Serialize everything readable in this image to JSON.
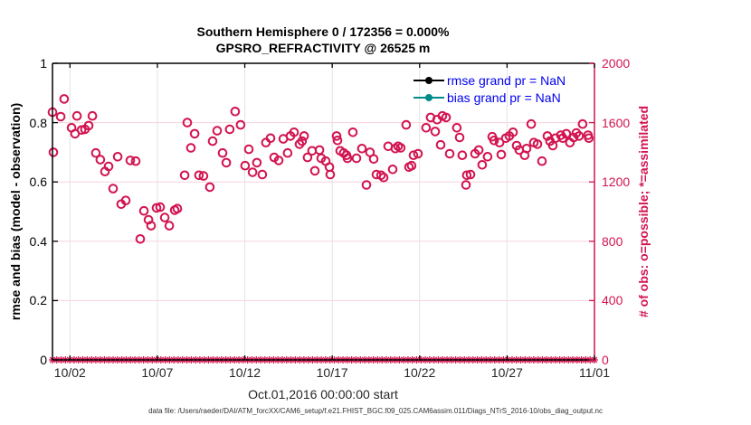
{
  "figure": {
    "title_line1": "Southern Hemisphere 0 / 172356 = 0.000%",
    "title_line2": "GPSRO_REFRACTIVITY @ 26525 m",
    "xlabel": "Oct.01,2016 00:00:00 start",
    "ylabel_left": "rmse and bias (model - observation)",
    "ylabel_right": "# of obs: o=possible; *=assimilated",
    "caption": "data file: /Users/raeder/DAI/ATM_forcXX/CAM6_setup/f.e21.FHIST_BGC.f09_025.CAM6assim.011/Diags_NTrS_2016-10/obs_diag_output.nc"
  },
  "legend": [
    {
      "label": "rmse grand pr = NaN",
      "marker_color": "#000000"
    },
    {
      "label": "bias grand pr = NaN",
      "marker_color": "#008b8b"
    }
  ],
  "colors": {
    "crimson": "#d21450",
    "legend_text": "#0000ee",
    "grid_horizontal": "#f7d3de",
    "grid_vertical": "#e3e3e3",
    "axis_black": "#000000",
    "tick_text_dark": "#262626"
  },
  "chart_data": {
    "type": "scatter",
    "title": "Southern Hemisphere 0 / 172356 = 0.000% | GPSRO_REFRACTIVITY @ 26525 m",
    "xlabel": "Oct.01,2016 00:00:00 start",
    "x_range_days": [
      0,
      31
    ],
    "x_tick_days": [
      1,
      6,
      11,
      16,
      21,
      26,
      31
    ],
    "x_tick_labels": [
      "10/02",
      "10/07",
      "10/12",
      "10/17",
      "10/22",
      "10/27",
      "11/01"
    ],
    "left_axis": {
      "label": "rmse and bias (model - observation)",
      "min": 0,
      "max": 1,
      "ticks": [
        0,
        0.2,
        0.4,
        0.6,
        0.8,
        1
      ],
      "tick_labels": [
        "0",
        "0.2",
        "0.4",
        "0.6",
        "0.8",
        "1"
      ]
    },
    "right_axis": {
      "label": "# of obs: o=possible; *=assimilated",
      "min": 0,
      "max": 2000,
      "ticks": [
        0,
        400,
        800,
        1200,
        1600,
        2000
      ],
      "tick_labels": [
        "0",
        "400",
        "800",
        "1200",
        "1600",
        "2000"
      ],
      "grid_tick_values": [
        400,
        800,
        1200,
        1600
      ]
    },
    "rmse_series": {
      "name": "rmse",
      "grand_value": "NaN",
      "points": []
    },
    "bias_series": {
      "name": "bias",
      "grand_value": "NaN",
      "points": []
    },
    "possible_points_units": "[days_since_Oct01_00Z, num_obs_possible]",
    "possible_points": [
      [
        0.0,
        1670
      ],
      [
        0.05,
        1400
      ],
      [
        0.47,
        1640
      ],
      [
        0.67,
        1760
      ],
      [
        1.09,
        1565
      ],
      [
        1.29,
        1525
      ],
      [
        1.4,
        1645
      ],
      [
        1.66,
        1550
      ],
      [
        1.86,
        1555
      ],
      [
        2.07,
        1580
      ],
      [
        2.28,
        1645
      ],
      [
        2.48,
        1395
      ],
      [
        2.74,
        1350
      ],
      [
        3.0,
        1270
      ],
      [
        3.21,
        1305
      ],
      [
        3.47,
        1155
      ],
      [
        3.73,
        1370
      ],
      [
        3.93,
        1050
      ],
      [
        4.19,
        1075
      ],
      [
        4.45,
        1345
      ],
      [
        4.76,
        1340
      ],
      [
        5.02,
        815
      ],
      [
        5.23,
        1005
      ],
      [
        5.49,
        945
      ],
      [
        5.64,
        905
      ],
      [
        5.95,
        1025
      ],
      [
        6.16,
        1030
      ],
      [
        6.42,
        960
      ],
      [
        6.68,
        905
      ],
      [
        6.99,
        1010
      ],
      [
        7.14,
        1020
      ],
      [
        7.56,
        1245
      ],
      [
        7.71,
        1600
      ],
      [
        7.92,
        1430
      ],
      [
        8.13,
        1525
      ],
      [
        8.38,
        1245
      ],
      [
        8.64,
        1240
      ],
      [
        9.0,
        1165
      ],
      [
        9.16,
        1475
      ],
      [
        9.42,
        1545
      ],
      [
        9.73,
        1395
      ],
      [
        9.94,
        1330
      ],
      [
        10.14,
        1555
      ],
      [
        10.45,
        1675
      ],
      [
        10.76,
        1585
      ],
      [
        11.02,
        1310
      ],
      [
        11.23,
        1420
      ],
      [
        11.44,
        1265
      ],
      [
        11.69,
        1330
      ],
      [
        12.0,
        1250
      ],
      [
        12.21,
        1465
      ],
      [
        12.47,
        1495
      ],
      [
        12.68,
        1365
      ],
      [
        12.94,
        1345
      ],
      [
        13.2,
        1490
      ],
      [
        13.45,
        1395
      ],
      [
        13.61,
        1510
      ],
      [
        13.82,
        1535
      ],
      [
        14.13,
        1455
      ],
      [
        14.28,
        1475
      ],
      [
        14.39,
        1510
      ],
      [
        14.59,
        1365
      ],
      [
        14.85,
        1410
      ],
      [
        15.01,
        1275
      ],
      [
        15.27,
        1415
      ],
      [
        15.37,
        1360
      ],
      [
        15.63,
        1340
      ],
      [
        15.84,
        1300
      ],
      [
        15.89,
        1250
      ],
      [
        16.25,
        1510
      ],
      [
        16.3,
        1480
      ],
      [
        16.46,
        1410
      ],
      [
        16.66,
        1395
      ],
      [
        16.82,
        1380
      ],
      [
        16.87,
        1360
      ],
      [
        17.18,
        1535
      ],
      [
        17.39,
        1360
      ],
      [
        17.7,
        1425
      ],
      [
        17.96,
        1180
      ],
      [
        18.16,
        1400
      ],
      [
        18.37,
        1355
      ],
      [
        18.53,
        1250
      ],
      [
        18.79,
        1245
      ],
      [
        18.94,
        1230
      ],
      [
        19.2,
        1440
      ],
      [
        19.46,
        1285
      ],
      [
        19.61,
        1425
      ],
      [
        19.77,
        1440
      ],
      [
        19.92,
        1430
      ],
      [
        20.23,
        1585
      ],
      [
        20.39,
        1300
      ],
      [
        20.54,
        1310
      ],
      [
        20.65,
        1380
      ],
      [
        20.91,
        1390
      ],
      [
        21.37,
        1565
      ],
      [
        21.63,
        1635
      ],
      [
        21.89,
        1540
      ],
      [
        22.0,
        1620
      ],
      [
        22.2,
        1450
      ],
      [
        22.3,
        1645
      ],
      [
        22.51,
        1635
      ],
      [
        22.72,
        1390
      ],
      [
        23.13,
        1565
      ],
      [
        23.29,
        1500
      ],
      [
        23.44,
        1380
      ],
      [
        23.65,
        1180
      ],
      [
        23.7,
        1245
      ],
      [
        23.91,
        1250
      ],
      [
        24.17,
        1390
      ],
      [
        24.38,
        1415
      ],
      [
        24.58,
        1315
      ],
      [
        24.89,
        1370
      ],
      [
        25.15,
        1505
      ],
      [
        25.26,
        1480
      ],
      [
        25.57,
        1465
      ],
      [
        25.67,
        1385
      ],
      [
        25.93,
        1495
      ],
      [
        26.13,
        1510
      ],
      [
        26.34,
        1535
      ],
      [
        26.55,
        1445
      ],
      [
        26.7,
        1415
      ],
      [
        27.01,
        1380
      ],
      [
        27.12,
        1425
      ],
      [
        27.38,
        1590
      ],
      [
        27.53,
        1465
      ],
      [
        27.74,
        1455
      ],
      [
        28.0,
        1340
      ],
      [
        28.31,
        1510
      ],
      [
        28.46,
        1475
      ],
      [
        28.62,
        1445
      ],
      [
        28.77,
        1495
      ],
      [
        29.08,
        1515
      ],
      [
        29.19,
        1495
      ],
      [
        29.39,
        1525
      ],
      [
        29.6,
        1465
      ],
      [
        29.81,
        1500
      ],
      [
        29.96,
        1530
      ],
      [
        30.12,
        1510
      ],
      [
        30.32,
        1590
      ],
      [
        30.63,
        1515
      ],
      [
        30.68,
        1495
      ]
    ],
    "assimilated": {
      "value": 0,
      "n_markers": 126
    }
  }
}
